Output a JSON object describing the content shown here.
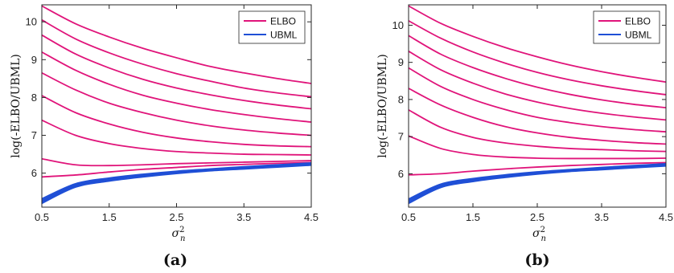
{
  "chart_data": [
    {
      "type": "line",
      "panel_label": "(a)",
      "xlabel": "σ",
      "xlabel_sup": "2",
      "xlabel_sub": "n",
      "ylabel": "log(-ELBO/UBML)",
      "xlim": [
        0.5,
        4.5
      ],
      "ylim": [
        5.1,
        10.45
      ],
      "xticks": [
        "0.5",
        "1.5",
        "2.5",
        "3.5",
        "4.5"
      ],
      "yticks": [
        "6",
        "7",
        "8",
        "9",
        "10"
      ],
      "legend": {
        "position": "top-right",
        "entries": [
          {
            "label": "ELBO",
            "color": "#e0147a"
          },
          {
            "label": "UBML",
            "color": "#1f4fd6"
          }
        ]
      },
      "x": [
        0.5,
        1.0,
        1.5,
        2.0,
        2.5,
        3.0,
        3.5,
        4.0,
        4.5
      ],
      "series": [
        {
          "group": "ELBO",
          "values": [
            10.42,
            9.95,
            9.6,
            9.3,
            9.05,
            8.82,
            8.65,
            8.5,
            8.37
          ]
        },
        {
          "group": "ELBO",
          "values": [
            10.05,
            9.55,
            9.18,
            8.88,
            8.63,
            8.43,
            8.25,
            8.12,
            8.02
          ]
        },
        {
          "group": "ELBO",
          "values": [
            9.65,
            9.15,
            8.78,
            8.48,
            8.25,
            8.07,
            7.92,
            7.8,
            7.7
          ]
        },
        {
          "group": "ELBO",
          "values": [
            9.2,
            8.72,
            8.35,
            8.06,
            7.85,
            7.68,
            7.55,
            7.44,
            7.35
          ]
        },
        {
          "group": "ELBO",
          "values": [
            8.65,
            8.2,
            7.85,
            7.6,
            7.4,
            7.25,
            7.14,
            7.06,
            7.0
          ]
        },
        {
          "group": "ELBO",
          "values": [
            8.05,
            7.6,
            7.3,
            7.08,
            6.93,
            6.83,
            6.76,
            6.72,
            6.7
          ]
        },
        {
          "group": "ELBO",
          "values": [
            7.4,
            7.0,
            6.78,
            6.65,
            6.57,
            6.53,
            6.5,
            6.49,
            6.48
          ]
        },
        {
          "group": "ELBO",
          "values": [
            6.38,
            6.22,
            6.2,
            6.22,
            6.25,
            6.27,
            6.29,
            6.31,
            6.33
          ]
        },
        {
          "group": "ELBO",
          "values": [
            5.9,
            5.95,
            6.03,
            6.1,
            6.15,
            6.2,
            6.23,
            6.26,
            6.28
          ]
        },
        {
          "group": "UBML",
          "values": [
            5.32,
            5.72,
            5.87,
            5.97,
            6.05,
            6.11,
            6.17,
            6.22,
            6.27
          ]
        },
        {
          "group": "UBML",
          "values": [
            5.28,
            5.69,
            5.85,
            5.95,
            6.03,
            6.09,
            6.15,
            6.2,
            6.25
          ]
        },
        {
          "group": "UBML",
          "values": [
            5.24,
            5.66,
            5.82,
            5.93,
            6.01,
            6.08,
            6.13,
            6.18,
            6.23
          ]
        },
        {
          "group": "UBML",
          "values": [
            5.2,
            5.63,
            5.79,
            5.9,
            5.99,
            6.06,
            6.11,
            6.16,
            6.21
          ]
        }
      ]
    },
    {
      "type": "line",
      "panel_label": "(b)",
      "xlabel": "σ",
      "xlabel_sup": "2",
      "xlabel_sub": "n",
      "ylabel": "log(-ELBO/UBML)",
      "xlim": [
        0.5,
        4.5
      ],
      "ylim": [
        5.1,
        10.55
      ],
      "xticks": [
        "0.5",
        "1.5",
        "2.5",
        "3.5",
        "4.5"
      ],
      "yticks": [
        "6",
        "7",
        "8",
        "9",
        "10"
      ],
      "legend": {
        "position": "top-right",
        "entries": [
          {
            "label": "ELBO",
            "color": "#e0147a"
          },
          {
            "label": "UBML",
            "color": "#1f4fd6"
          }
        ]
      },
      "x": [
        0.5,
        1.0,
        1.5,
        2.0,
        2.5,
        3.0,
        3.5,
        4.0,
        4.5
      ],
      "series": [
        {
          "group": "ELBO",
          "values": [
            10.52,
            10.05,
            9.7,
            9.4,
            9.15,
            8.93,
            8.75,
            8.6,
            8.47
          ]
        },
        {
          "group": "ELBO",
          "values": [
            10.12,
            9.65,
            9.28,
            8.98,
            8.73,
            8.53,
            8.37,
            8.24,
            8.13
          ]
        },
        {
          "group": "ELBO",
          "values": [
            9.72,
            9.22,
            8.86,
            8.57,
            8.33,
            8.14,
            7.99,
            7.87,
            7.78
          ]
        },
        {
          "group": "ELBO",
          "values": [
            9.3,
            8.8,
            8.44,
            8.15,
            7.93,
            7.76,
            7.63,
            7.53,
            7.45
          ]
        },
        {
          "group": "ELBO",
          "values": [
            8.85,
            8.35,
            8.0,
            7.73,
            7.52,
            7.38,
            7.27,
            7.19,
            7.13
          ]
        },
        {
          "group": "ELBO",
          "values": [
            8.3,
            7.85,
            7.52,
            7.27,
            7.1,
            6.98,
            6.9,
            6.84,
            6.8
          ]
        },
        {
          "group": "ELBO",
          "values": [
            7.72,
            7.25,
            6.98,
            6.83,
            6.74,
            6.68,
            6.65,
            6.62,
            6.6
          ]
        },
        {
          "group": "ELBO",
          "values": [
            7.02,
            6.68,
            6.52,
            6.45,
            6.42,
            6.41,
            6.41,
            6.41,
            6.42
          ]
        },
        {
          "group": "ELBO",
          "values": [
            5.97,
            6.0,
            6.07,
            6.13,
            6.18,
            6.22,
            6.25,
            6.28,
            6.3
          ]
        },
        {
          "group": "UBML",
          "values": [
            5.32,
            5.72,
            5.87,
            5.97,
            6.05,
            6.11,
            6.17,
            6.22,
            6.27
          ]
        },
        {
          "group": "UBML",
          "values": [
            5.28,
            5.69,
            5.85,
            5.95,
            6.03,
            6.09,
            6.15,
            6.2,
            6.25
          ]
        },
        {
          "group": "UBML",
          "values": [
            5.24,
            5.66,
            5.82,
            5.93,
            6.01,
            6.08,
            6.13,
            6.18,
            6.23
          ]
        },
        {
          "group": "UBML",
          "values": [
            5.2,
            5.63,
            5.79,
            5.9,
            5.99,
            6.06,
            6.11,
            6.16,
            6.21
          ]
        }
      ]
    }
  ]
}
